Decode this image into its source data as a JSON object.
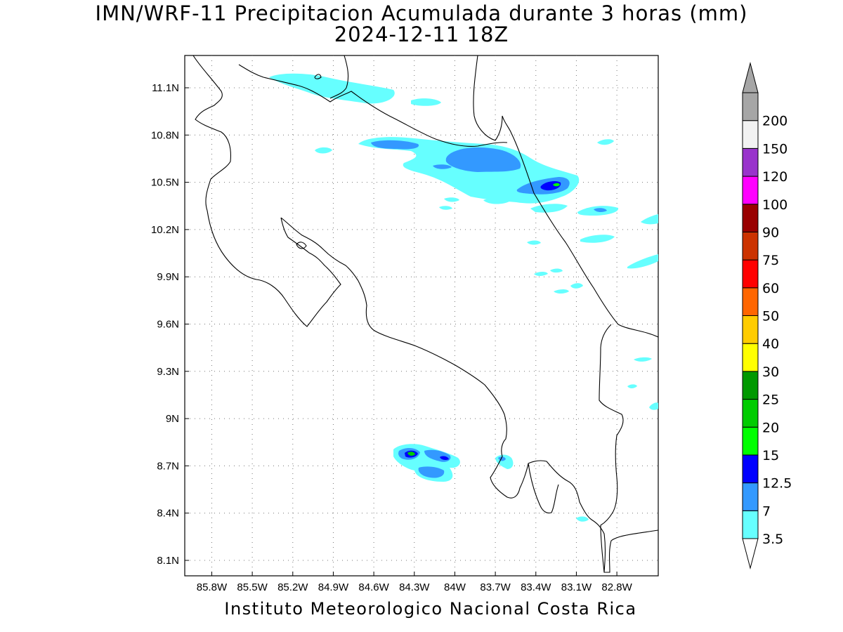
{
  "title_line1": "IMN/WRF-11 Precipitacion Acumulada durante 3 horas (mm)",
  "title_line2": "2024-12-11 18Z",
  "footer": "Instituto Meteorologico Nacional Costa Rica",
  "map": {
    "lon_range": [
      -86.0,
      -82.5
    ],
    "lat_range": [
      8.0,
      11.3
    ],
    "lon_ticks": [
      "85.8W",
      "85.5W",
      "85.2W",
      "84.9W",
      "84.6W",
      "84.3W",
      "84W",
      "83.7W",
      "83.4W",
      "83.1W",
      "82.8W"
    ],
    "lat_ticks": [
      "11.1N",
      "10.8N",
      "10.5N",
      "10.2N",
      "9.9N",
      "9.6N",
      "9.3N",
      "9N",
      "8.7N",
      "8.4N",
      "8.1N"
    ],
    "grid": true
  },
  "colorbar": {
    "labels": [
      "3.5",
      "7",
      "12.5",
      "15",
      "20",
      "25",
      "30",
      "40",
      "50",
      "60",
      "75",
      "90",
      "100",
      "120",
      "150",
      "200"
    ],
    "colors": [
      "#66ffff",
      "#3399ff",
      "#0000ff",
      "#00ff00",
      "#00cc00",
      "#009900",
      "#ffff00",
      "#ffcc00",
      "#ff6600",
      "#ff0000",
      "#cc3300",
      "#990000",
      "#ff00ff",
      "#9933cc",
      "#f2f2f2",
      "#a6a6a6"
    ],
    "under_color": "#ffffff",
    "over_color": "#a6a6a6"
  }
}
